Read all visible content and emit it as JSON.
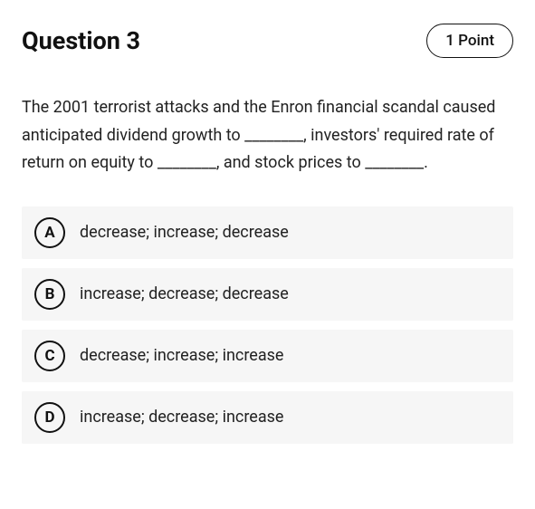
{
  "header": {
    "title": "Question 3",
    "points_label": "1 Point"
  },
  "question": {
    "text": "The 2001 terrorist attacks and the Enron financial scandal caused anticipated dividend growth to ________, investors' required rate of return on equity to ________, and stock prices to ________."
  },
  "options": [
    {
      "letter": "A",
      "text": "decrease; increase; decrease"
    },
    {
      "letter": "B",
      "text": "increase; decrease; decrease"
    },
    {
      "letter": "C",
      "text": "decrease; increase; increase"
    },
    {
      "letter": "D",
      "text": "increase; decrease; increase"
    }
  ],
  "styling": {
    "background_color": "#ffffff",
    "text_color": "#1a1a1a",
    "option_background": "#f6f6f6",
    "border_color": "#111111",
    "title_fontsize": 27,
    "body_fontsize": 18,
    "option_fontsize": 18,
    "letter_circle_diameter": 34,
    "letter_border_width": 2
  }
}
